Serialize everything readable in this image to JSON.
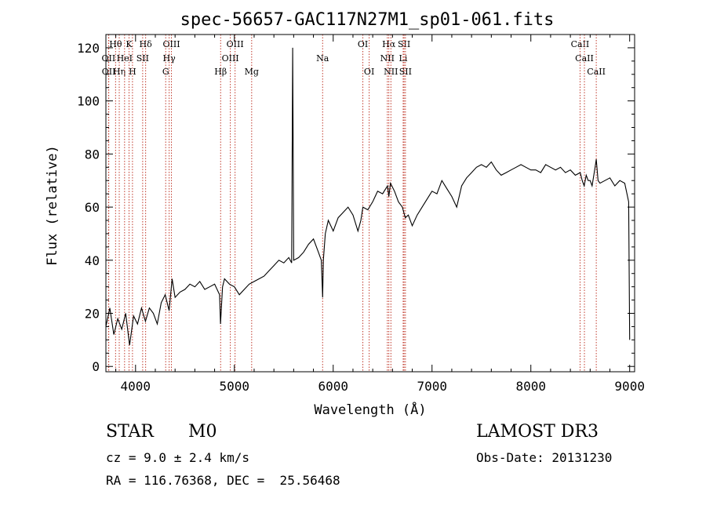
{
  "chart_data": {
    "type": "line",
    "title": "spec-56657-GAC117N27M1_sp01-061.fits",
    "xlabel": "Wavelength (Å)",
    "ylabel": "Flux (relative)",
    "xlim": [
      3700,
      9050
    ],
    "ylim": [
      -2,
      125
    ],
    "xticks": [
      4000,
      5000,
      6000,
      7000,
      8000,
      9000
    ],
    "yticks": [
      0,
      20,
      40,
      60,
      80,
      100,
      120
    ],
    "grid": false,
    "series": [
      {
        "name": "flux",
        "x": [
          3700,
          3740,
          3780,
          3820,
          3860,
          3900,
          3940,
          3980,
          4020,
          4060,
          4100,
          4140,
          4180,
          4220,
          4260,
          4300,
          4340,
          4370,
          4400,
          4450,
          4500,
          4550,
          4600,
          4650,
          4700,
          4750,
          4800,
          4850,
          4860,
          4880,
          4900,
          4950,
          5000,
          5050,
          5100,
          5150,
          5200,
          5250,
          5300,
          5350,
          5400,
          5450,
          5500,
          5550,
          5580,
          5590,
          5600,
          5650,
          5700,
          5750,
          5800,
          5850,
          5880,
          5893,
          5900,
          5920,
          5950,
          6000,
          6050,
          6100,
          6150,
          6200,
          6250,
          6280,
          6300,
          6350,
          6400,
          6450,
          6500,
          6550,
          6563,
          6580,
          6620,
          6660,
          6700,
          6730,
          6760,
          6800,
          6850,
          6900,
          6950,
          7000,
          7050,
          7100,
          7150,
          7200,
          7250,
          7300,
          7350,
          7400,
          7450,
          7500,
          7550,
          7600,
          7650,
          7700,
          7750,
          7800,
          7850,
          7900,
          7950,
          8000,
          8050,
          8100,
          8150,
          8200,
          8250,
          8300,
          8350,
          8400,
          8450,
          8500,
          8520,
          8540,
          8560,
          8580,
          8600,
          8620,
          8650,
          8662,
          8680,
          8700,
          8750,
          8800,
          8850,
          8900,
          8950,
          8990,
          9000
        ],
        "y": [
          15,
          22,
          12,
          18,
          14,
          20,
          8,
          19,
          16,
          22,
          17,
          22,
          20,
          16,
          24,
          27,
          21,
          33,
          26,
          28,
          29,
          31,
          30,
          32,
          29,
          30,
          31,
          27,
          16,
          30,
          33,
          31,
          30,
          27,
          29,
          31,
          32,
          33,
          34,
          36,
          38,
          40,
          39,
          41,
          39,
          120,
          40,
          41,
          43,
          46,
          48,
          43,
          40,
          26,
          40,
          50,
          55,
          51,
          56,
          58,
          60,
          57,
          51,
          55,
          60,
          59,
          62,
          66,
          65,
          68,
          64,
          69,
          66,
          62,
          60,
          56,
          57,
          53,
          57,
          60,
          63,
          66,
          65,
          70,
          67,
          64,
          60,
          68,
          71,
          73,
          75,
          76,
          75,
          77,
          74,
          72,
          73,
          74,
          75,
          76,
          75,
          74,
          74,
          73,
          76,
          75,
          74,
          75,
          73,
          74,
          72,
          73,
          70,
          68,
          72,
          70,
          70,
          68,
          75,
          78,
          70,
          69,
          70,
          71,
          68,
          70,
          69,
          62,
          10
        ]
      }
    ],
    "lines": [
      {
        "label": "Hθ",
        "w": 3798,
        "row": 0
      },
      {
        "label": "OII",
        "w": 3727,
        "row": 1
      },
      {
        "label": "OII",
        "w": 3729,
        "row": 2
      },
      {
        "label": "Hη",
        "w": 3835,
        "row": 2
      },
      {
        "label": "HeI",
        "w": 3889,
        "row": 1
      },
      {
        "label": "K",
        "w": 3934,
        "row": 0
      },
      {
        "label": "H",
        "w": 3969,
        "row": 2
      },
      {
        "label": "SII",
        "w": 4072,
        "row": 1
      },
      {
        "label": "Hδ",
        "w": 4102,
        "row": 0
      },
      {
        "label": "OIII",
        "w": 4363,
        "row": 0
      },
      {
        "label": "Hγ",
        "w": 4340,
        "row": 1
      },
      {
        "label": "G",
        "w": 4305,
        "row": 2
      },
      {
        "label": "Hβ",
        "w": 4861,
        "row": 2
      },
      {
        "label": "OIII",
        "w": 4959,
        "row": 1
      },
      {
        "label": "OIII",
        "w": 5007,
        "row": 0
      },
      {
        "label": "Mg",
        "w": 5175,
        "row": 2
      },
      {
        "label": "Na",
        "w": 5893,
        "row": 1
      },
      {
        "label": "OI",
        "w": 6300,
        "row": 0
      },
      {
        "label": "OI",
        "w": 6364,
        "row": 2
      },
      {
        "label": "Hα",
        "w": 6563,
        "row": 0
      },
      {
        "label": "NII",
        "w": 6548,
        "row": 1
      },
      {
        "label": "NII",
        "w": 6584,
        "row": 2
      },
      {
        "label": "SII",
        "w": 6717,
        "row": 0
      },
      {
        "label": "Li",
        "w": 6708,
        "row": 1
      },
      {
        "label": "SII",
        "w": 6731,
        "row": 2
      },
      {
        "label": "CaII",
        "w": 8498,
        "row": 0
      },
      {
        "label": "CaII",
        "w": 8542,
        "row": 1
      },
      {
        "label": "CaII",
        "w": 8662,
        "row": 2
      }
    ]
  },
  "info": {
    "obj_class": "STAR",
    "subclass": "M0",
    "survey": "LAMOST DR3",
    "cz": "cz = 9.0 ± 2.4 km/s",
    "obs_date": "Obs-Date: 20131230",
    "coords": "RA = 116.76368, DEC =  25.56468"
  }
}
